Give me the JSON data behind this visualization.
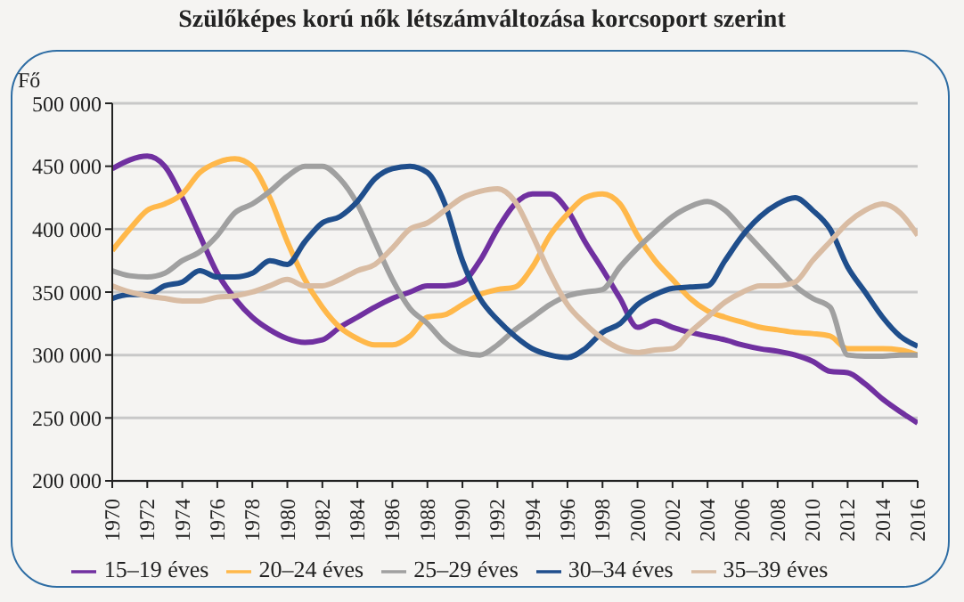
{
  "chart_data": {
    "type": "line",
    "title": "Szülőképes korú nők létszámváltozása korcsoport szerint",
    "ylabel": "Fő",
    "x": [
      1970,
      1971,
      1972,
      1973,
      1974,
      1975,
      1976,
      1977,
      1978,
      1979,
      1980,
      1981,
      1982,
      1983,
      1984,
      1985,
      1986,
      1987,
      1988,
      1989,
      1990,
      1991,
      1992,
      1993,
      1994,
      1995,
      1996,
      1997,
      1998,
      1999,
      2000,
      2001,
      2002,
      2003,
      2004,
      2005,
      2006,
      2007,
      2008,
      2009,
      2010,
      2011,
      2012,
      2013,
      2014,
      2015,
      2016
    ],
    "series": [
      {
        "name": "15–19 éves",
        "color": "#7030a0",
        "values": [
          448000,
          455000,
          458000,
          450000,
          425000,
          395000,
          365000,
          345000,
          330000,
          320000,
          313000,
          310000,
          312000,
          322000,
          330000,
          338000,
          345000,
          350000,
          355000,
          355000,
          358000,
          375000,
          400000,
          420000,
          428000,
          428000,
          415000,
          390000,
          368000,
          345000,
          322000,
          327000,
          322000,
          318000,
          315000,
          312000,
          308000,
          305000,
          303000,
          300000,
          295000,
          287000,
          286000,
          277000,
          265000,
          255000,
          246000
        ]
      },
      {
        "name": "20–24 éves",
        "color": "#ffb84a",
        "values": [
          383000,
          400000,
          415000,
          420000,
          428000,
          445000,
          453000,
          456000,
          450000,
          425000,
          390000,
          360000,
          338000,
          322000,
          313000,
          308000,
          308000,
          315000,
          330000,
          332000,
          340000,
          348000,
          352000,
          354000,
          370000,
          395000,
          412000,
          425000,
          428000,
          420000,
          395000,
          375000,
          360000,
          345000,
          335000,
          330000,
          326000,
          322000,
          320000,
          318000,
          317000,
          315000,
          305000,
          305000,
          305000,
          304000,
          300000
        ]
      },
      {
        "name": "25–29 éves",
        "color": "#a0a0a0",
        "values": [
          367000,
          363000,
          362000,
          365000,
          375000,
          382000,
          395000,
          413000,
          420000,
          430000,
          442000,
          450000,
          450000,
          440000,
          420000,
          390000,
          360000,
          337000,
          325000,
          310000,
          302000,
          300000,
          308000,
          320000,
          330000,
          340000,
          347000,
          350000,
          352000,
          370000,
          385000,
          398000,
          410000,
          418000,
          422000,
          415000,
          400000,
          385000,
          370000,
          355000,
          345000,
          338000,
          300000,
          299000,
          299000,
          300000,
          300000
        ]
      },
      {
        "name": "30–34 éves",
        "color": "#1f4e8c",
        "values": [
          345000,
          348000,
          348000,
          355000,
          358000,
          367000,
          362000,
          362000,
          365000,
          375000,
          372000,
          390000,
          405000,
          410000,
          422000,
          440000,
          448000,
          450000,
          445000,
          420000,
          375000,
          345000,
          328000,
          315000,
          305000,
          300000,
          298000,
          305000,
          318000,
          325000,
          340000,
          348000,
          353000,
          354000,
          355000,
          375000,
          395000,
          410000,
          420000,
          425000,
          415000,
          400000,
          370000,
          350000,
          330000,
          315000,
          307000
        ]
      },
      {
        "name": "35–39 éves",
        "color": "#d9bca3",
        "values": [
          355000,
          350000,
          347000,
          345000,
          343000,
          343000,
          346000,
          347000,
          350000,
          355000,
          360000,
          355000,
          355000,
          360000,
          367000,
          372000,
          385000,
          400000,
          405000,
          415000,
          425000,
          430000,
          432000,
          422000,
          395000,
          365000,
          340000,
          325000,
          313000,
          305000,
          302000,
          304000,
          305000,
          318000,
          330000,
          342000,
          350000,
          355000,
          355000,
          358000,
          375000,
          390000,
          405000,
          415000,
          420000,
          413000,
          395000
        ]
      }
    ],
    "xlim": [
      1970,
      2016
    ],
    "xticks": [
      1970,
      1972,
      1974,
      1976,
      1978,
      1980,
      1982,
      1984,
      1986,
      1988,
      1990,
      1992,
      1994,
      1996,
      1998,
      2000,
      2002,
      2004,
      2006,
      2008,
      2010,
      2012,
      2014,
      2016
    ],
    "ylim": [
      200000,
      500000
    ],
    "yticks": [
      {
        "value": 200000,
        "label": "200 000"
      },
      {
        "value": 250000,
        "label": "250 000"
      },
      {
        "value": 300000,
        "label": "300 000"
      },
      {
        "value": 350000,
        "label": "350 000"
      },
      {
        "value": 400000,
        "label": "400 000"
      },
      {
        "value": 450000,
        "label": "450 000"
      },
      {
        "value": 500000,
        "label": "500 000"
      }
    ],
    "grid": "y",
    "legend": "bottom",
    "marker": "none",
    "line_style": "solid"
  }
}
